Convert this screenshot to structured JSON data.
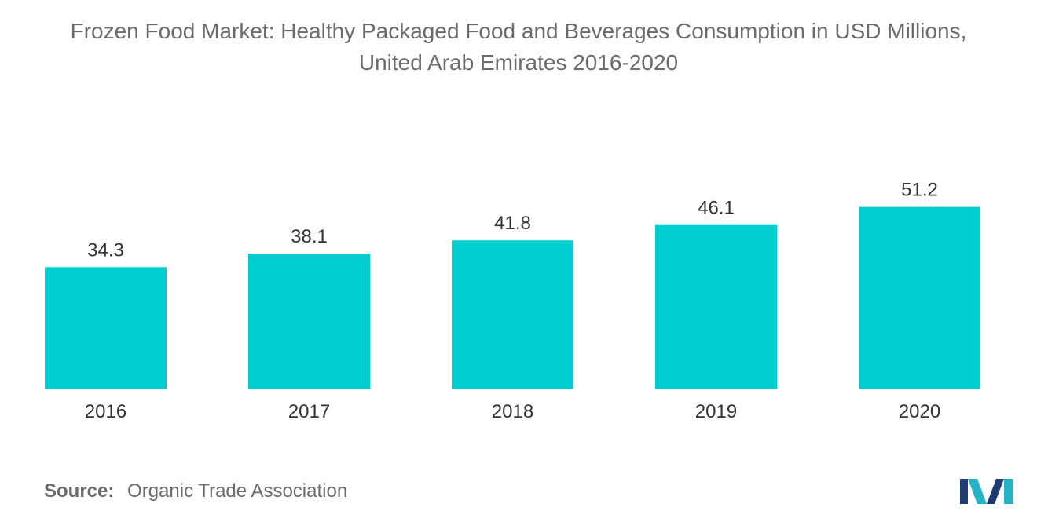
{
  "chart_data": {
    "type": "bar",
    "title_line1": "Frozen Food Market: Healthy Packaged Food and Beverages Consumption in USD Millions,",
    "title_line2": "United Arab Emirates 2016-2020",
    "categories": [
      "2016",
      "2017",
      "2018",
      "2019",
      "2020"
    ],
    "values": [
      34.3,
      38.1,
      41.8,
      46.1,
      51.2
    ],
    "value_labels": [
      "34.3",
      "38.1",
      "41.8",
      "46.1",
      "51.2"
    ],
    "bar_color": "#00CED1",
    "grid": false,
    "legend": "none"
  },
  "source": {
    "label": "Source:",
    "text": "Organic Trade Association"
  },
  "logo": {
    "icon": "mordor-intelligence-logo-icon",
    "colors": [
      "#1f3b73",
      "#27b3c7"
    ]
  }
}
